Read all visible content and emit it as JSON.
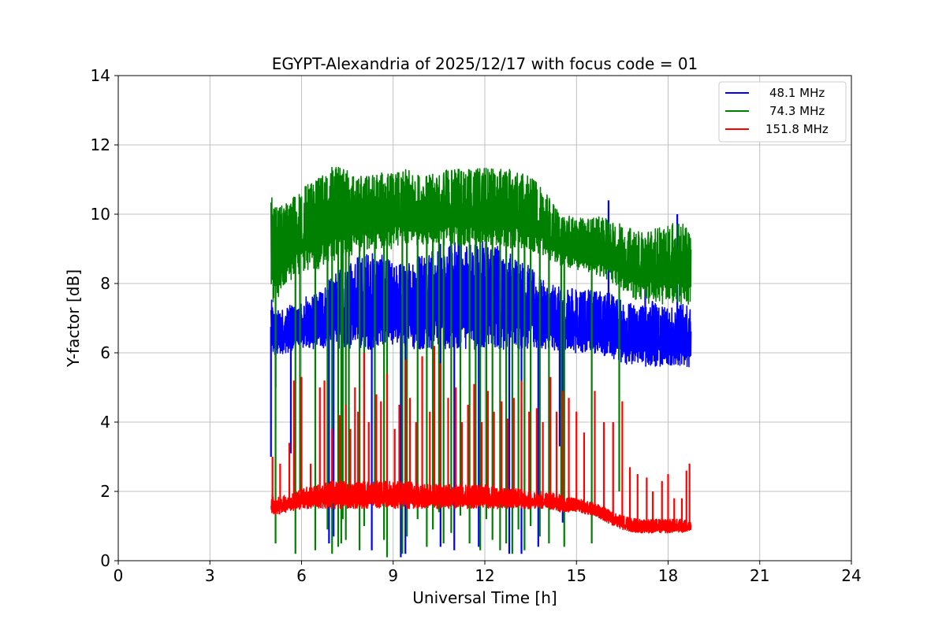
{
  "chart_data": {
    "type": "line",
    "title": "EGYPT-Alexandria of 2025/12/17 with focus code = 01",
    "xlabel": "Universal Time [h]",
    "ylabel": "Y-factor [dB]",
    "xlim": [
      0,
      24
    ],
    "ylim": [
      0,
      14
    ],
    "xticks": [
      0,
      3,
      6,
      9,
      12,
      15,
      18,
      21,
      24
    ],
    "yticks": [
      0,
      2,
      4,
      6,
      8,
      10,
      12,
      14
    ],
    "grid": true,
    "legend_position": "top-right",
    "series": [
      {
        "name": "48.1 MHz",
        "color": "#0000ff",
        "x": [
          5.0,
          5.1,
          5.5,
          6.0,
          6.5,
          7.0,
          7.5,
          8.0,
          8.5,
          9.0,
          9.5,
          10.0,
          10.5,
          11.0,
          11.5,
          12.0,
          12.5,
          13.0,
          13.5,
          14.0,
          14.5,
          15.0,
          15.5,
          16.0,
          16.5,
          17.0,
          17.5,
          18.0,
          18.5,
          18.75
        ],
        "min": [
          5.9,
          5.9,
          6.0,
          6.1,
          6.1,
          6.1,
          6.1,
          6.1,
          6.1,
          6.1,
          6.1,
          6.1,
          6.1,
          6.1,
          6.1,
          6.1,
          6.1,
          6.1,
          6.1,
          6.1,
          6.0,
          6.0,
          6.0,
          5.9,
          5.7,
          5.6,
          5.6,
          5.6,
          5.6,
          5.6
        ],
        "max": [
          7.6,
          7.2,
          7.3,
          7.6,
          7.7,
          8.2,
          8.6,
          8.9,
          8.9,
          8.6,
          8.7,
          9.0,
          9.2,
          9.3,
          9.2,
          9.3,
          9.1,
          8.8,
          8.5,
          8.0,
          7.9,
          7.9,
          7.8,
          7.8,
          7.5,
          7.4,
          7.5,
          7.4,
          7.4,
          7.3
        ]
      },
      {
        "name": "74.3 MHz",
        "color": "#008000",
        "x": [
          5.0,
          5.1,
          5.5,
          6.0,
          6.5,
          7.0,
          7.5,
          8.0,
          8.5,
          9.0,
          9.5,
          10.0,
          10.5,
          11.0,
          11.5,
          12.0,
          12.5,
          13.0,
          13.5,
          14.0,
          14.5,
          15.0,
          15.5,
          16.0,
          16.5,
          17.0,
          17.5,
          18.0,
          18.5,
          18.75
        ],
        "min": [
          7.5,
          7.4,
          8.0,
          8.3,
          8.4,
          8.6,
          8.7,
          8.9,
          9.0,
          9.0,
          9.1,
          9.1,
          9.1,
          9.1,
          9.1,
          9.1,
          9.1,
          9.0,
          8.9,
          8.7,
          8.5,
          8.4,
          8.3,
          8.1,
          7.8,
          7.5,
          7.4,
          7.4,
          7.4,
          7.4
        ],
        "max": [
          10.6,
          10.2,
          10.3,
          10.8,
          11.0,
          11.4,
          11.3,
          11.1,
          11.2,
          11.2,
          11.3,
          11.1,
          11.2,
          11.4,
          11.3,
          11.4,
          11.3,
          11.3,
          11.1,
          10.6,
          10.0,
          9.9,
          9.9,
          10.0,
          9.7,
          9.5,
          9.6,
          9.7,
          9.8,
          9.5
        ]
      },
      {
        "name": "151.8 MHz",
        "color": "#ff0000",
        "x": [
          5.0,
          5.1,
          5.5,
          6.0,
          6.5,
          7.0,
          7.5,
          8.0,
          8.5,
          9.0,
          9.5,
          10.0,
          10.5,
          11.0,
          11.5,
          12.0,
          12.5,
          13.0,
          13.5,
          14.0,
          14.5,
          15.0,
          15.5,
          16.0,
          16.5,
          17.0,
          17.5,
          18.0,
          18.5,
          18.75
        ],
        "min": [
          1.3,
          1.3,
          1.4,
          1.5,
          1.5,
          1.5,
          1.5,
          1.5,
          1.5,
          1.5,
          1.5,
          1.5,
          1.5,
          1.5,
          1.5,
          1.5,
          1.5,
          1.5,
          1.5,
          1.5,
          1.4,
          1.4,
          1.3,
          1.1,
          0.9,
          0.8,
          0.8,
          0.8,
          0.8,
          0.9
        ],
        "max": [
          2.0,
          1.8,
          1.9,
          2.1,
          2.2,
          2.3,
          2.3,
          2.3,
          2.3,
          2.3,
          2.3,
          2.2,
          2.2,
          2.2,
          2.2,
          2.2,
          2.1,
          2.1,
          2.0,
          2.0,
          1.9,
          1.8,
          1.7,
          1.5,
          1.3,
          1.2,
          1.2,
          1.2,
          1.2,
          1.1
        ]
      }
    ],
    "spikes": [
      {
        "series": "74.3 MHz",
        "x": [
          5.15,
          5.8,
          5.95,
          6.45,
          6.85,
          7.0,
          7.2,
          7.3,
          7.35,
          7.45,
          7.55,
          7.9,
          8.05,
          8.4,
          8.7,
          8.8,
          9.3,
          9.45,
          9.8,
          10.1,
          10.3,
          10.5,
          10.65,
          10.9,
          11.2,
          11.5,
          11.7,
          11.85,
          12.05,
          12.25,
          12.5,
          12.7,
          12.9,
          13.1,
          13.3,
          13.5,
          13.8,
          14.1,
          14.5,
          14.6,
          15.5,
          16.4
        ],
        "y": [
          0.5,
          0.2,
          2.0,
          0.3,
          0.9,
          0.2,
          0.4,
          0.5,
          1.2,
          0.6,
          1.6,
          0.3,
          1.0,
          1.8,
          0.6,
          0.1,
          0.2,
          0.7,
          1.2,
          0.4,
          0.9,
          1.4,
          0.5,
          0.8,
          1.3,
          0.5,
          1.7,
          0.3,
          1.2,
          0.6,
          0.3,
          0.5,
          0.2,
          0.9,
          0.3,
          1.0,
          0.7,
          0.5,
          1.8,
          0.4,
          0.5,
          2.0
        ]
      },
      {
        "series": "48.1 MHz",
        "x": [
          5.0,
          5.15,
          5.65,
          6.9,
          7.05,
          8.3,
          9.25,
          9.4,
          10.55,
          11.0,
          11.8,
          12.8,
          13.2,
          13.75,
          14.45,
          14.55,
          16.05,
          17.25,
          18.3
        ],
        "y": [
          3.0,
          5.0,
          3.1,
          0.5,
          0.7,
          0.3,
          0.1,
          0.2,
          0.4,
          0.3,
          0.4,
          0.2,
          0.2,
          0.4,
          3.3,
          1.1,
          10.4,
          9.0,
          10.0
        ]
      },
      {
        "series": "151.8 MHz",
        "x": [
          5.05,
          5.3,
          5.6,
          5.75,
          6.0,
          6.3,
          6.6,
          6.75,
          7.0,
          7.25,
          7.45,
          7.6,
          7.75,
          7.85,
          8.05,
          8.2,
          8.45,
          8.6,
          8.8,
          9.05,
          9.2,
          9.4,
          9.55,
          9.75,
          9.95,
          10.2,
          10.35,
          10.55,
          10.8,
          11.05,
          11.25,
          11.45,
          11.65,
          11.9,
          12.1,
          12.3,
          12.55,
          12.75,
          12.95,
          13.2,
          13.45,
          13.7,
          13.9,
          14.15,
          14.35,
          14.55,
          14.75,
          15.0,
          15.25,
          15.6,
          15.9,
          16.2,
          16.5,
          16.75,
          17.0,
          17.3,
          17.5,
          17.8,
          18.0,
          18.2,
          18.45,
          18.6,
          18.7
        ],
        "y": [
          3.0,
          2.8,
          3.4,
          5.2,
          5.3,
          2.8,
          5.0,
          5.2,
          3.8,
          4.2,
          4.5,
          3.8,
          5.0,
          4.3,
          6.0,
          4.0,
          4.8,
          4.6,
          5.4,
          3.8,
          4.5,
          5.8,
          4.7,
          4.0,
          5.9,
          4.3,
          6.2,
          5.7,
          4.7,
          5.0,
          4.0,
          4.5,
          5.1,
          4.0,
          4.9,
          4.3,
          4.6,
          4.1,
          4.7,
          5.2,
          4.3,
          4.4,
          4.0,
          5.3,
          4.3,
          4.9,
          4.7,
          4.3,
          3.7,
          4.9,
          4.0,
          4.0,
          4.6,
          2.7,
          2.5,
          2.4,
          2.0,
          2.3,
          2.5,
          1.8,
          1.8,
          2.6,
          2.8
        ]
      }
    ]
  }
}
